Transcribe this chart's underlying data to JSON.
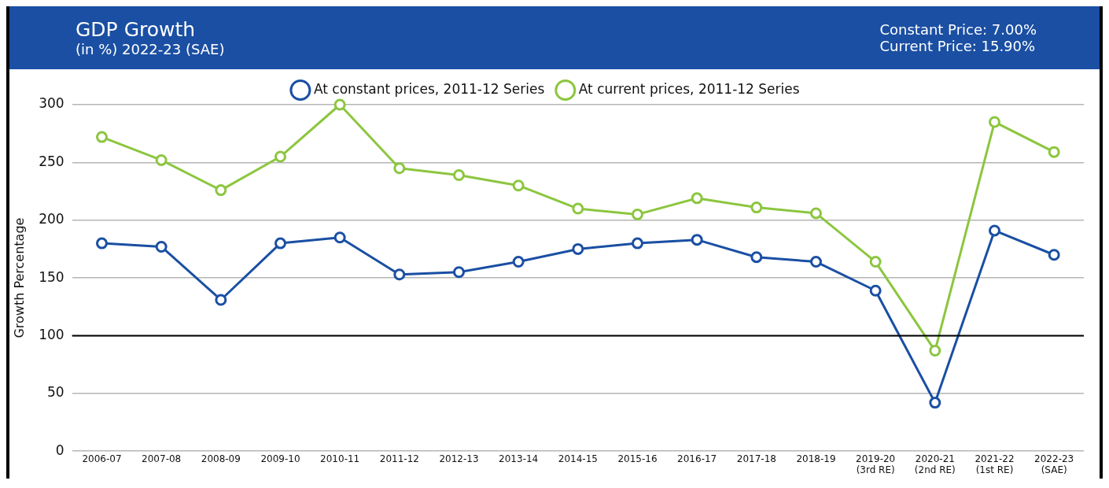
{
  "chart_data": {
    "type": "line",
    "title": "GDP Growth",
    "subtitle": "(in %) 2022-23 (SAE)",
    "ylabel": "Growth Percentage",
    "annotations": [
      "Constant Price: 7.00%",
      "Current Price: 15.90%"
    ],
    "categories": [
      "2006-07",
      "2007-08",
      "2008-09",
      "2009-10",
      "2010-11",
      "2011-12",
      "2012-13",
      "2013-14",
      "2014-15",
      "2015-16",
      "2016-17",
      "2017-18",
      "2018-19",
      "2019-20\n(3rd RE)",
      "2020-21\n(2nd RE)",
      "2021-22\n(1st RE)",
      "2022-23\n(SAE)"
    ],
    "ylim": [
      0,
      300
    ],
    "yticks": [
      0,
      50,
      100,
      150,
      200,
      250,
      300
    ],
    "series": [
      {
        "name": "At constant prices, 2011-12 Series",
        "color": "#1a4fa3",
        "values": [
          180,
          177,
          131,
          180,
          185,
          153,
          155,
          164,
          175,
          180,
          183,
          168,
          164,
          139,
          42,
          191,
          170
        ]
      },
      {
        "name": "At current prices, 2011-12 Series",
        "color": "#8cc63f",
        "values": [
          272,
          252,
          226,
          255,
          300,
          245,
          239,
          230,
          210,
          205,
          219,
          211,
          206,
          164,
          87,
          285,
          259
        ]
      }
    ],
    "ref_lines": [
      {
        "axis": "y",
        "value": 100,
        "color": "#000000"
      }
    ],
    "grid": "y",
    "legend": "top",
    "marker": "circle",
    "line_style": "solid"
  }
}
